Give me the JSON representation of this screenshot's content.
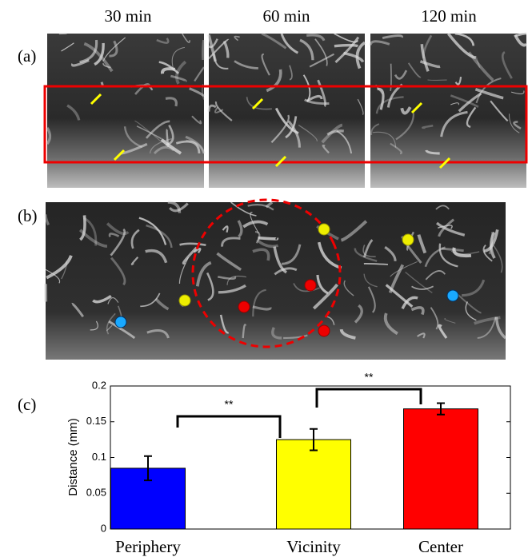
{
  "panel_labels": [
    "(a)",
    "(b)",
    "(c)"
  ],
  "time_labels": [
    "30 min",
    "60 min",
    "120 min"
  ],
  "chart_data": {
    "type": "bar",
    "ylabel": "Distance (mm)",
    "categories": [
      "Periphery",
      "Vicinity",
      "Center"
    ],
    "values": [
      0.085,
      0.125,
      0.168
    ],
    "errors": [
      0.017,
      0.015,
      0.008
    ],
    "colors": [
      "#0000ff",
      "#ffff00",
      "#ff0000"
    ],
    "ylim": [
      0,
      0.2
    ],
    "yticks": [
      0,
      0.05,
      0.1,
      0.15,
      0.2
    ],
    "annotations": [
      "**",
      "**"
    ]
  }
}
